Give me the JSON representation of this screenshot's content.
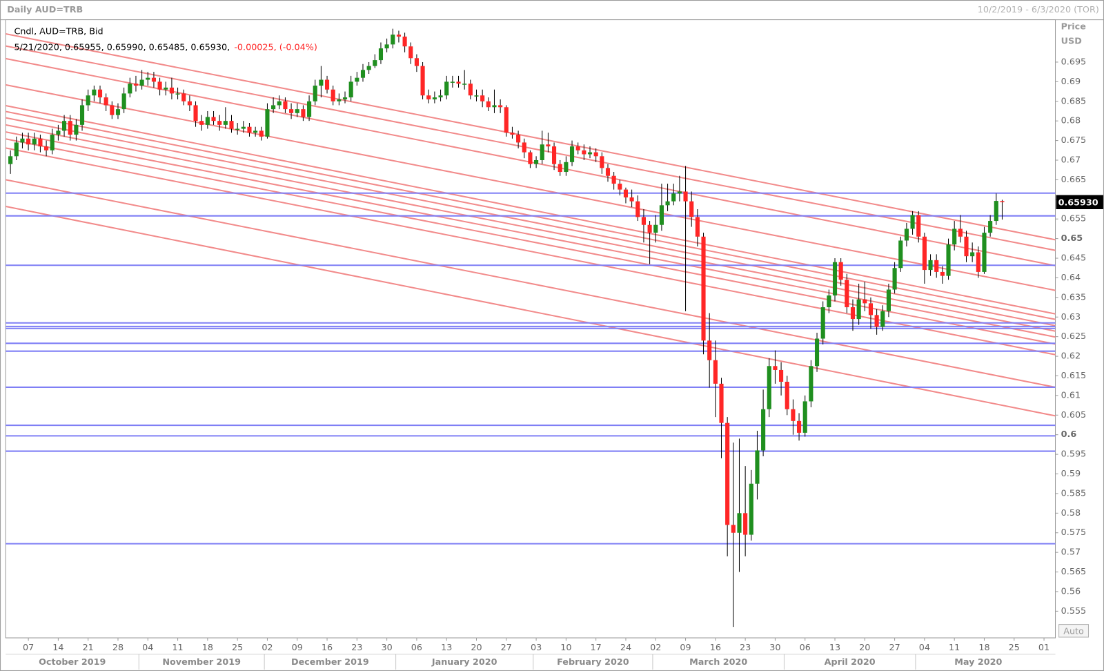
{
  "chart_data": {
    "type": "candlestick",
    "title": "Daily AUD=TRB",
    "subtitle": "10/2/2019 - 6/3/2020 (TOR)",
    "ylabel": "Price",
    "yunit": "USD",
    "legend": {
      "name": "Cndl, AUD=TRB, Bid",
      "ohlc": "5/21/2020, 0.65955, 0.65990, 0.65485, 0.65930,",
      "change": "-0.00025, (-0.04%)"
    },
    "last_price": {
      "value": 0.6593,
      "label": "0.65930"
    },
    "auto_button": "Auto",
    "up_color": "#1f8f1f",
    "down_color": "#ff2626",
    "hline_color": "#7f7ff5",
    "trendline_color": "#f28a8a",
    "grid": false,
    "xlim": [
      -0.8,
      174.9
    ],
    "ylim": [
      0.5482,
      0.7058
    ],
    "yticks": [
      0.695,
      0.69,
      0.685,
      0.68,
      0.675,
      0.67,
      0.665,
      0.66,
      0.655,
      0.65,
      0.645,
      0.64,
      0.635,
      0.63,
      0.625,
      0.62,
      0.615,
      0.61,
      0.605,
      0.6,
      0.595,
      0.59,
      0.585,
      0.58,
      0.575,
      0.57,
      0.565,
      0.56,
      0.555
    ],
    "xticks": [
      {
        "value": 3,
        "label": "07"
      },
      {
        "value": 8,
        "label": "14"
      },
      {
        "value": 13,
        "label": "21"
      },
      {
        "value": 18,
        "label": "28"
      },
      {
        "value": 23,
        "label": "04"
      },
      {
        "value": 28,
        "label": "11"
      },
      {
        "value": 33,
        "label": "18"
      },
      {
        "value": 38,
        "label": "25"
      },
      {
        "value": 43,
        "label": "02"
      },
      {
        "value": 48,
        "label": "09"
      },
      {
        "value": 53,
        "label": "16"
      },
      {
        "value": 58,
        "label": "23"
      },
      {
        "value": 63,
        "label": "30"
      },
      {
        "value": 68,
        "label": "06"
      },
      {
        "value": 73,
        "label": "13"
      },
      {
        "value": 78,
        "label": "20"
      },
      {
        "value": 83,
        "label": "27"
      },
      {
        "value": 88,
        "label": "03"
      },
      {
        "value": 93,
        "label": "10"
      },
      {
        "value": 98,
        "label": "17"
      },
      {
        "value": 103,
        "label": "24"
      },
      {
        "value": 108,
        "label": "02"
      },
      {
        "value": 113,
        "label": "09"
      },
      {
        "value": 118,
        "label": "16"
      },
      {
        "value": 123,
        "label": "23"
      },
      {
        "value": 128,
        "label": "30"
      },
      {
        "value": 133,
        "label": "06"
      },
      {
        "value": 138,
        "label": "13"
      },
      {
        "value": 143,
        "label": "20"
      },
      {
        "value": 148,
        "label": "27"
      },
      {
        "value": 153,
        "label": "04"
      },
      {
        "value": 158,
        "label": "11"
      },
      {
        "value": 163,
        "label": "18"
      },
      {
        "value": 168,
        "label": "25"
      },
      {
        "value": 173,
        "label": "01"
      }
    ],
    "months": [
      "October 2019",
      "November 2019",
      "December 2019",
      "January 2020",
      "February 2020",
      "March 2020",
      "April 2020",
      "May 2020"
    ],
    "hlines": [
      0.6616,
      0.6558,
      0.6432,
      0.6285,
      0.6276,
      0.6271,
      0.6233,
      0.6213,
      0.6121,
      0.6024,
      0.5997,
      0.5958,
      0.5722
    ],
    "trendlines": [
      [
        0.7022,
        0.6497
      ],
      [
        0.6991,
        0.647
      ],
      [
        0.6959,
        0.6431
      ],
      [
        0.6892,
        0.6368
      ],
      [
        0.6839,
        0.6308
      ],
      [
        0.6824,
        0.6294
      ],
      [
        0.6808,
        0.6278
      ],
      [
        0.679,
        0.6264
      ],
      [
        0.6772,
        0.6249
      ],
      [
        0.6754,
        0.6231
      ],
      [
        0.6731,
        0.6204
      ],
      [
        0.665,
        0.6121
      ],
      [
        0.6582,
        0.6048
      ]
    ],
    "open": [
      0.669,
      0.671,
      0.6745,
      0.6755,
      0.674,
      0.6755,
      0.6735,
      0.6725,
      0.6765,
      0.6775,
      0.68,
      0.6765,
      0.679,
      0.684,
      0.6865,
      0.688,
      0.686,
      0.684,
      0.6815,
      0.683,
      0.687,
      0.6895,
      0.689,
      0.6905,
      0.691,
      0.69,
      0.688,
      0.6885,
      0.687,
      0.687,
      0.685,
      0.684,
      0.68,
      0.679,
      0.681,
      0.68,
      0.679,
      0.68,
      0.678,
      0.678,
      0.6785,
      0.677,
      0.6775,
      0.676,
      0.683,
      0.684,
      0.685,
      0.683,
      0.682,
      0.683,
      0.681,
      0.685,
      0.689,
      0.6905,
      0.688,
      0.685,
      0.6855,
      0.686,
      0.69,
      0.691,
      0.693,
      0.694,
      0.6955,
      0.6985,
      0.6995,
      0.702,
      0.7015,
      0.699,
      0.696,
      0.694,
      0.6865,
      0.6855,
      0.686,
      0.6865,
      0.69,
      0.69,
      0.6895,
      0.6895,
      0.6865,
      0.6865,
      0.685,
      0.6835,
      0.684,
      0.6835,
      0.677,
      0.6765,
      0.6745,
      0.672,
      0.669,
      0.67,
      0.674,
      0.6735,
      0.669,
      0.667,
      0.6695,
      0.6735,
      0.6725,
      0.6715,
      0.672,
      0.671,
      0.668,
      0.666,
      0.664,
      0.6625,
      0.6605,
      0.6595,
      0.6555,
      0.6535,
      0.6515,
      0.6535,
      0.6585,
      0.6595,
      0.6615,
      0.662,
      0.6595,
      0.6555,
      0.6505,
      0.624,
      0.619,
      0.613,
      0.603,
      0.577,
      0.575,
      0.58,
      0.5745,
      0.5875,
      0.596,
      0.6065,
      0.6175,
      0.6165,
      0.6135,
      0.6065,
      0.6035,
      0.6005,
      0.6085,
      0.6175,
      0.6245,
      0.6325,
      0.6355,
      0.644,
      0.6395,
      0.6325,
      0.6295,
      0.6345,
      0.6335,
      0.6305,
      0.6275,
      0.6315,
      0.637,
      0.6425,
      0.6495,
      0.6525,
      0.656,
      0.6505,
      0.642,
      0.6445,
      0.6415,
      0.6405,
      0.6485,
      0.6525,
      0.6505,
      0.6455,
      0.6465,
      0.6415,
      0.6515,
      0.6545,
      0.65955
    ],
    "high": [
      0.6725,
      0.676,
      0.677,
      0.677,
      0.677,
      0.6765,
      0.675,
      0.678,
      0.679,
      0.6815,
      0.6815,
      0.6805,
      0.6855,
      0.688,
      0.689,
      0.689,
      0.687,
      0.685,
      0.6845,
      0.6885,
      0.691,
      0.6915,
      0.693,
      0.6925,
      0.6925,
      0.691,
      0.69,
      0.691,
      0.6885,
      0.688,
      0.6865,
      0.685,
      0.6815,
      0.6825,
      0.6825,
      0.6815,
      0.6835,
      0.6815,
      0.6795,
      0.68,
      0.6795,
      0.6785,
      0.6785,
      0.6845,
      0.686,
      0.6865,
      0.686,
      0.6845,
      0.6845,
      0.684,
      0.6865,
      0.6905,
      0.694,
      0.6915,
      0.689,
      0.687,
      0.6875,
      0.6915,
      0.6925,
      0.6945,
      0.695,
      0.697,
      0.7,
      0.701,
      0.7035,
      0.703,
      0.7025,
      0.7,
      0.697,
      0.695,
      0.688,
      0.6875,
      0.688,
      0.6915,
      0.6915,
      0.6915,
      0.693,
      0.6905,
      0.688,
      0.688,
      0.686,
      0.688,
      0.6855,
      0.684,
      0.6785,
      0.6775,
      0.6755,
      0.6725,
      0.671,
      0.6775,
      0.677,
      0.6745,
      0.67,
      0.671,
      0.675,
      0.6745,
      0.674,
      0.6735,
      0.673,
      0.672,
      0.669,
      0.667,
      0.665,
      0.663,
      0.6625,
      0.661,
      0.6575,
      0.6545,
      0.656,
      0.664,
      0.664,
      0.664,
      0.666,
      0.6685,
      0.662,
      0.6575,
      0.6515,
      0.631,
      0.624,
      0.6145,
      0.6045,
      0.598,
      0.599,
      0.592,
      0.591,
      0.601,
      0.6115,
      0.6195,
      0.6215,
      0.6185,
      0.615,
      0.609,
      0.6055,
      0.61,
      0.619,
      0.626,
      0.634,
      0.637,
      0.645,
      0.645,
      0.641,
      0.6345,
      0.6385,
      0.639,
      0.635,
      0.632,
      0.633,
      0.6385,
      0.644,
      0.6505,
      0.654,
      0.657,
      0.657,
      0.6515,
      0.646,
      0.646,
      0.643,
      0.65,
      0.6545,
      0.656,
      0.652,
      0.649,
      0.648,
      0.653,
      0.656,
      0.6615,
      0.6599
    ],
    "low": [
      0.6665,
      0.67,
      0.673,
      0.6725,
      0.6725,
      0.672,
      0.671,
      0.6715,
      0.675,
      0.676,
      0.675,
      0.675,
      0.6775,
      0.6825,
      0.685,
      0.6845,
      0.6825,
      0.6805,
      0.6805,
      0.682,
      0.686,
      0.6875,
      0.688,
      0.689,
      0.6885,
      0.6865,
      0.6865,
      0.6855,
      0.6855,
      0.684,
      0.6825,
      0.6785,
      0.6775,
      0.678,
      0.679,
      0.6775,
      0.678,
      0.677,
      0.6765,
      0.677,
      0.676,
      0.676,
      0.675,
      0.6755,
      0.682,
      0.683,
      0.682,
      0.6805,
      0.681,
      0.68,
      0.68,
      0.684,
      0.686,
      0.687,
      0.684,
      0.684,
      0.6845,
      0.685,
      0.689,
      0.69,
      0.692,
      0.6935,
      0.6945,
      0.6975,
      0.6985,
      0.7,
      0.6975,
      0.6945,
      0.6925,
      0.6855,
      0.6845,
      0.6845,
      0.685,
      0.6855,
      0.6885,
      0.6885,
      0.688,
      0.6855,
      0.685,
      0.6835,
      0.6825,
      0.682,
      0.682,
      0.676,
      0.6755,
      0.673,
      0.6705,
      0.668,
      0.668,
      0.669,
      0.672,
      0.6675,
      0.666,
      0.666,
      0.6685,
      0.6715,
      0.67,
      0.6705,
      0.6695,
      0.6665,
      0.6645,
      0.6625,
      0.661,
      0.659,
      0.658,
      0.6545,
      0.649,
      0.6435,
      0.649,
      0.652,
      0.657,
      0.6585,
      0.6595,
      0.6315,
      0.653,
      0.648,
      0.6205,
      0.612,
      0.6045,
      0.594,
      0.569,
      0.551,
      0.565,
      0.569,
      0.573,
      0.5835,
      0.5945,
      0.6045,
      0.613,
      0.61,
      0.605,
      0.6,
      0.5985,
      0.5995,
      0.607,
      0.616,
      0.623,
      0.631,
      0.634,
      0.638,
      0.631,
      0.6265,
      0.628,
      0.6315,
      0.627,
      0.6255,
      0.6265,
      0.63,
      0.636,
      0.6415,
      0.648,
      0.651,
      0.649,
      0.6385,
      0.6405,
      0.64,
      0.6385,
      0.6395,
      0.647,
      0.649,
      0.644,
      0.644,
      0.64,
      0.641,
      0.6505,
      0.6535,
      0.65485
    ],
    "close": [
      0.671,
      0.6745,
      0.6755,
      0.674,
      0.6755,
      0.6735,
      0.6725,
      0.6765,
      0.6775,
      0.68,
      0.6765,
      0.679,
      0.684,
      0.6865,
      0.688,
      0.686,
      0.684,
      0.6815,
      0.683,
      0.687,
      0.6895,
      0.689,
      0.6905,
      0.691,
      0.69,
      0.688,
      0.6885,
      0.687,
      0.687,
      0.685,
      0.684,
      0.68,
      0.679,
      0.681,
      0.68,
      0.679,
      0.68,
      0.678,
      0.678,
      0.6785,
      0.677,
      0.6775,
      0.676,
      0.683,
      0.684,
      0.685,
      0.683,
      0.682,
      0.683,
      0.681,
      0.685,
      0.689,
      0.6905,
      0.688,
      0.685,
      0.6855,
      0.686,
      0.69,
      0.691,
      0.693,
      0.694,
      0.6955,
      0.6985,
      0.6995,
      0.702,
      0.7015,
      0.699,
      0.696,
      0.694,
      0.6865,
      0.6855,
      0.686,
      0.6865,
      0.69,
      0.69,
      0.6895,
      0.6895,
      0.6865,
      0.6865,
      0.685,
      0.6835,
      0.684,
      0.6835,
      0.677,
      0.6765,
      0.6745,
      0.672,
      0.669,
      0.67,
      0.674,
      0.6735,
      0.669,
      0.667,
      0.6695,
      0.6735,
      0.6725,
      0.6715,
      0.672,
      0.671,
      0.668,
      0.666,
      0.664,
      0.6625,
      0.6605,
      0.6595,
      0.6555,
      0.6535,
      0.6515,
      0.6535,
      0.6585,
      0.6595,
      0.6615,
      0.662,
      0.6595,
      0.6555,
      0.6505,
      0.624,
      0.619,
      0.613,
      0.603,
      0.577,
      0.575,
      0.58,
      0.5745,
      0.5875,
      0.596,
      0.6065,
      0.6175,
      0.6165,
      0.6135,
      0.6065,
      0.6035,
      0.6005,
      0.6085,
      0.6175,
      0.6245,
      0.6325,
      0.6355,
      0.644,
      0.6395,
      0.6325,
      0.6295,
      0.6345,
      0.6335,
      0.6305,
      0.6275,
      0.6315,
      0.637,
      0.6425,
      0.6495,
      0.6525,
      0.656,
      0.6505,
      0.642,
      0.6445,
      0.6415,
      0.6405,
      0.6485,
      0.6525,
      0.6505,
      0.6455,
      0.6465,
      0.6415,
      0.6515,
      0.6545,
      0.6596,
      0.6593
    ]
  }
}
